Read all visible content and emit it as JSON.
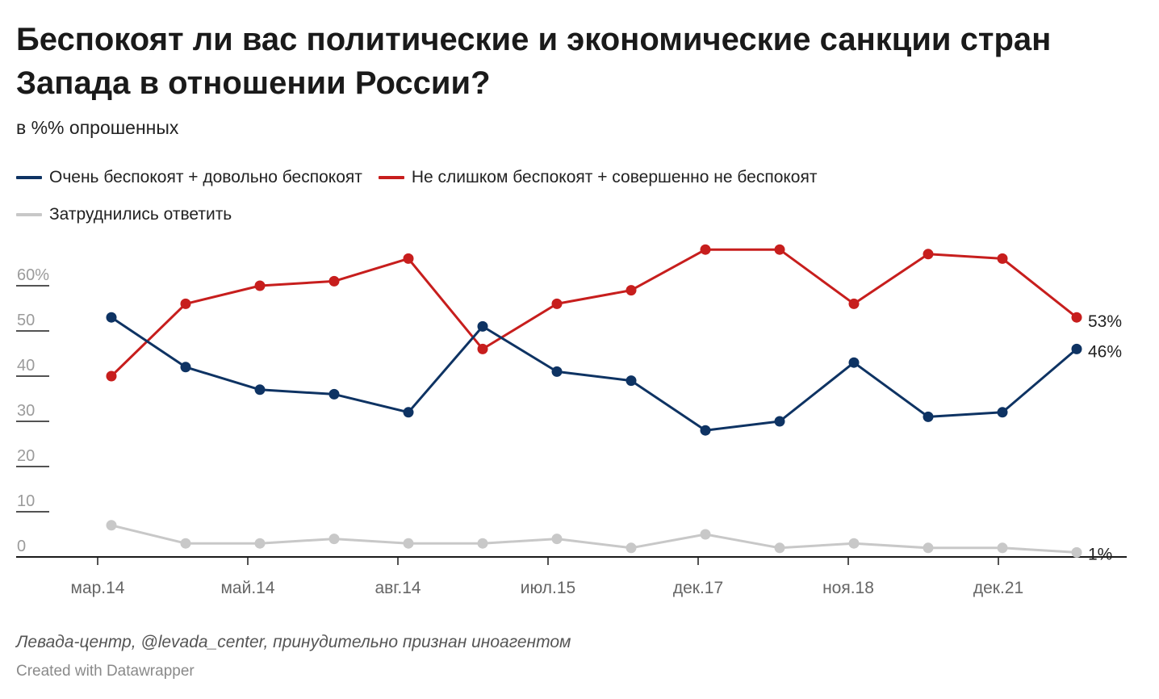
{
  "header": {
    "title": "Беспокоят ли вас политические и экономические санкции стран Запада в отношении России?",
    "subtitle": "в %% опрошенных"
  },
  "footer": {
    "source": "Левада-центр, @levada_center, принудительно признан иноагентом",
    "credit": "Created with Datawrapper"
  },
  "chart_data": {
    "type": "line",
    "title": "Беспокоят ли вас политические и экономические санкции стран Запада в отношении России?",
    "subtitle": "в %% опрошенных",
    "xlabel": "",
    "ylabel": "",
    "ylim": [
      0,
      60
    ],
    "y_ticks": [
      "60%",
      "50",
      "40",
      "30",
      "20",
      "10",
      "0"
    ],
    "x_tick_labels": [
      "мар.14",
      "май.14",
      "авг.14",
      "июл.15",
      "дек.17",
      "ноя.18",
      "дек.21"
    ],
    "grid": false,
    "legend_position": "top-left",
    "series": [
      {
        "name": "Очень беспокоят + довольно беспокоят",
        "color": "#0e3363",
        "end_label": "46%",
        "values": [
          53,
          42,
          37,
          36,
          32,
          51,
          41,
          39,
          28,
          30,
          43,
          31,
          32,
          46
        ]
      },
      {
        "name": "Не слишком беспокоят + совершенно не беспокоят",
        "color": "#c71e1d",
        "end_label": "53%",
        "values": [
          40,
          56,
          60,
          61,
          66,
          46,
          56,
          59,
          68,
          68,
          56,
          67,
          66,
          53
        ]
      },
      {
        "name": "Затруднились ответить",
        "color": "#c8c8c8",
        "end_label": "1%",
        "values": [
          7,
          3,
          3,
          4,
          3,
          3,
          4,
          2,
          5,
          2,
          3,
          2,
          2,
          1
        ]
      }
    ]
  }
}
